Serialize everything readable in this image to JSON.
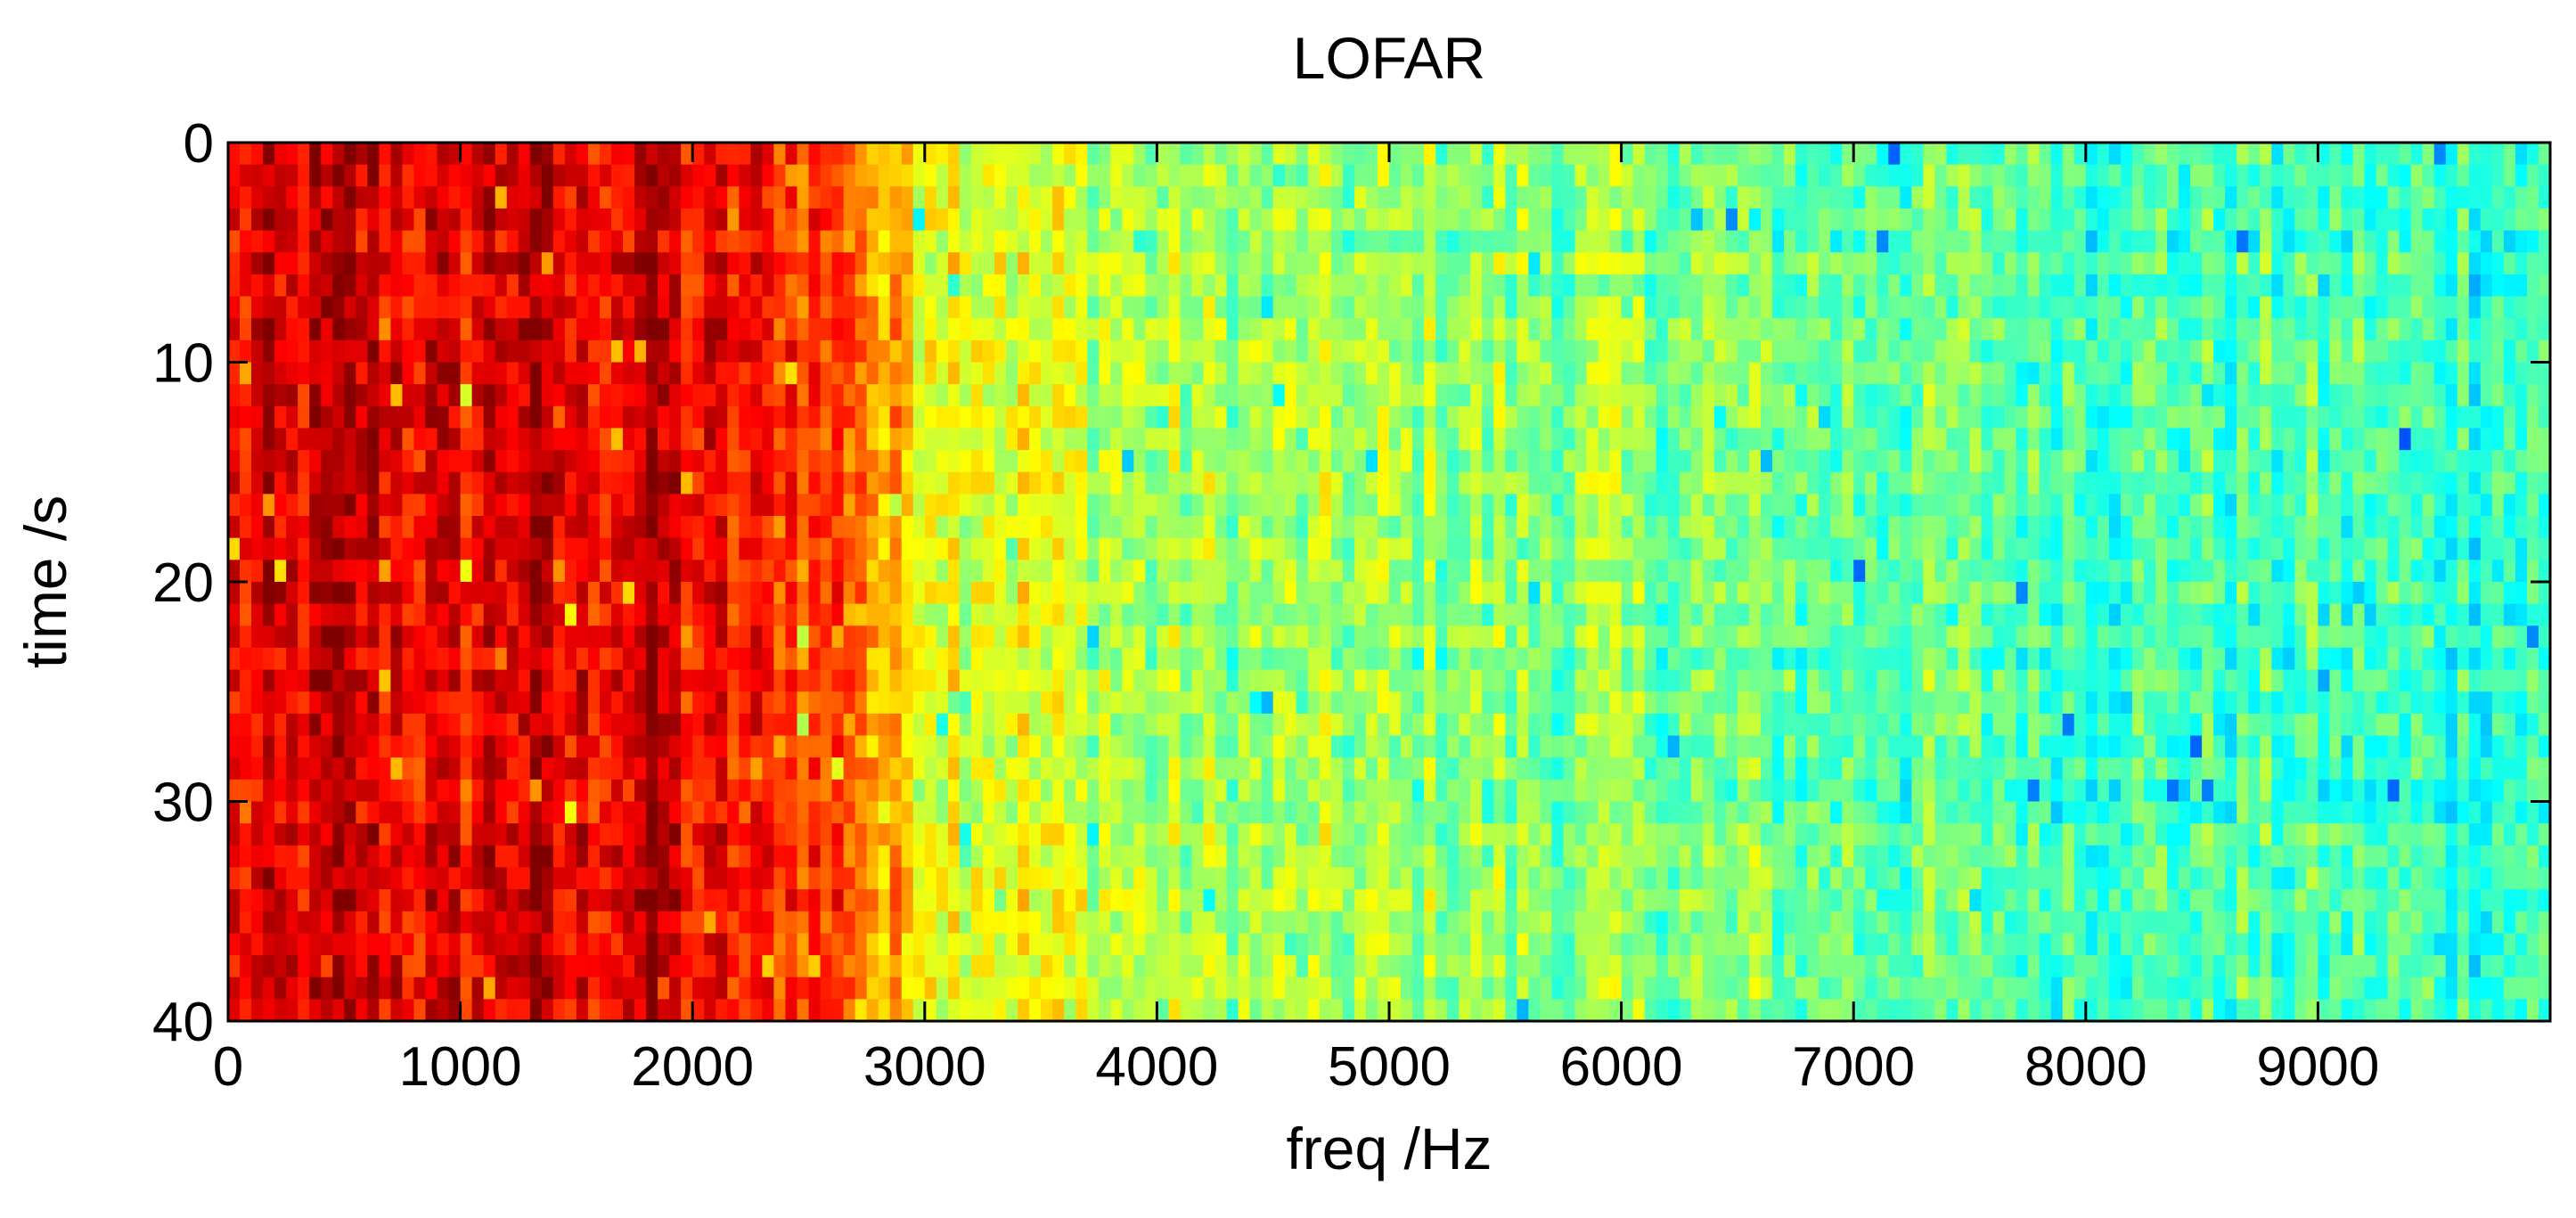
{
  "chart_data": {
    "type": "heatmap",
    "title": "LOFAR",
    "xlabel": "freq /Hz",
    "ylabel": "time /s",
    "xlim": [
      0,
      10000
    ],
    "ylim": [
      0,
      40
    ],
    "y_axis_reversed": true,
    "x_ticks": [
      0,
      1000,
      2000,
      3000,
      4000,
      5000,
      6000,
      7000,
      8000,
      9000
    ],
    "y_ticks": [
      0,
      10,
      20,
      30,
      40
    ],
    "colormap": "jet",
    "grid": false,
    "legend": "none",
    "time_bins": 40,
    "freq_bins": 200,
    "intensity_profile": {
      "description_points_freq_hz": [
        0,
        250,
        500,
        1000,
        1250,
        1500,
        1850,
        2000,
        2300,
        2700,
        2800,
        3000,
        3400,
        4000,
        5000,
        6000,
        7000,
        8000,
        9000,
        10000
      ],
      "mean_level": [
        0.86,
        0.88,
        0.92,
        0.86,
        0.93,
        0.87,
        0.93,
        0.86,
        0.84,
        0.8,
        0.7,
        0.64,
        0.6,
        0.53,
        0.52,
        0.5,
        0.47,
        0.45,
        0.44,
        0.42
      ]
    }
  }
}
